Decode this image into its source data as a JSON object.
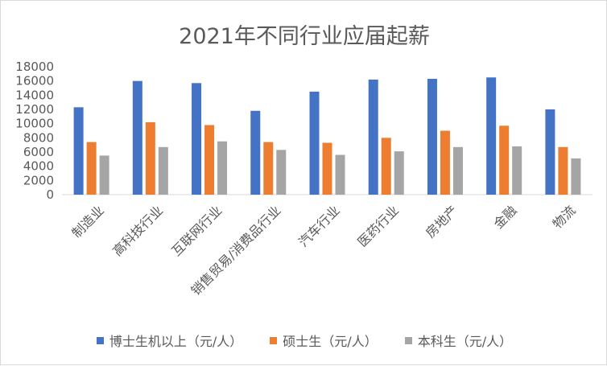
{
  "chart_data": {
    "type": "bar",
    "title": "2021年不同行业应届起薪",
    "xlabel": "",
    "ylabel": "",
    "ylim": [
      0,
      18000
    ],
    "yticks": [
      0,
      2000,
      4000,
      6000,
      8000,
      10000,
      12000,
      14000,
      16000,
      18000
    ],
    "grid": false,
    "legend_position": "bottom",
    "categories": [
      "制造业",
      "高科技行业",
      "互联网行业",
      "销售贸易/消费品行业",
      "汽车行业",
      "医药行业",
      "房地产",
      "金融",
      "物流"
    ],
    "series": [
      {
        "name": "博士生机以上（元/人）",
        "color": "#4472c4",
        "values": [
          12300,
          16000,
          15700,
          11800,
          14500,
          16200,
          16300,
          16500,
          12000
        ]
      },
      {
        "name": "硕士生（元/人）",
        "color": "#ed7d31",
        "values": [
          7400,
          10200,
          9800,
          7400,
          7300,
          8000,
          9000,
          9700,
          6700
        ]
      },
      {
        "name": "本科生（元/人）",
        "color": "#a5a5a5",
        "values": [
          5500,
          6700,
          7500,
          6300,
          5600,
          6100,
          6700,
          6800,
          5100
        ]
      }
    ]
  }
}
